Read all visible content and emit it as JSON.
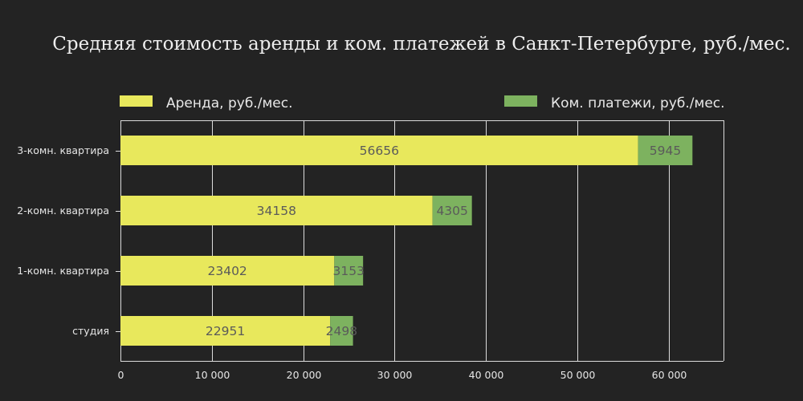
{
  "chart_data": {
    "type": "bar",
    "orientation": "horizontal",
    "stacked": true,
    "title": "Средняя стоимость аренды и ком. платежей в Санкт-Петербурге, руб./мес.",
    "categories": [
      "студия",
      "1-комн. квартира",
      "2-комн. квартира",
      "3-комн. квартира"
    ],
    "series": [
      {
        "name": "Аренда, руб./мес.",
        "color": "#e8e85c",
        "values": [
          22951,
          23402,
          34158,
          56656
        ]
      },
      {
        "name": "Ком. платежи, руб./мес.",
        "color": "#7db25f",
        "values": [
          2498,
          3153,
          4305,
          5945
        ]
      }
    ],
    "xlim": [
      0,
      66000
    ],
    "x_ticks": [
      0,
      10000,
      20000,
      30000,
      40000,
      50000,
      60000
    ],
    "x_tick_labels": [
      "0",
      "10 000",
      "20 000",
      "30 000",
      "40 000",
      "50 000",
      "60 000"
    ],
    "grid": true,
    "legend_position": "top",
    "data_labels": true
  }
}
